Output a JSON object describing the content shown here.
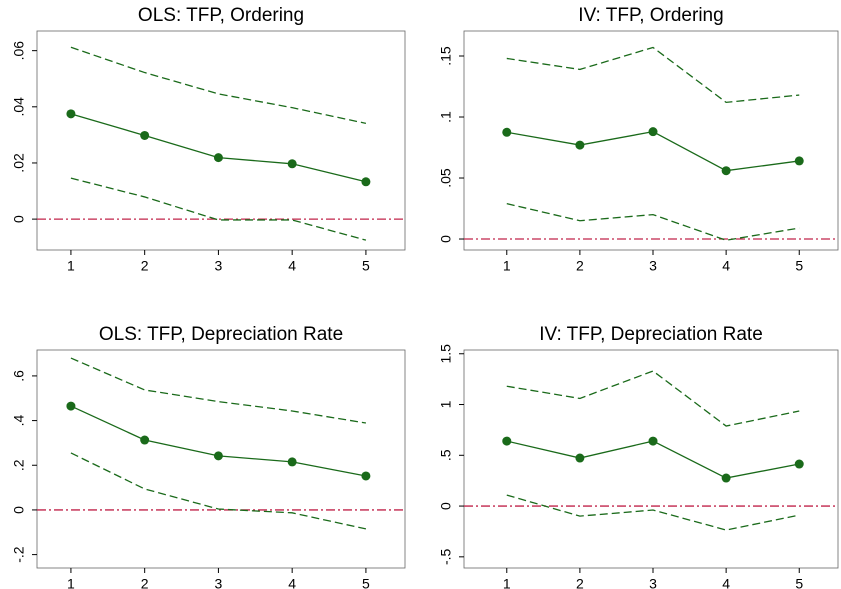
{
  "chart_data": [
    {
      "type": "line",
      "title": "OLS: TFP, Ordering",
      "x": [
        1,
        2,
        3,
        4,
        5
      ],
      "xlim": [
        0.54,
        5.53
      ],
      "xticks": [
        1,
        2,
        3,
        4,
        5
      ],
      "ylim": [
        -0.011,
        0.067
      ],
      "yticks": [
        0,
        {
          "value": 0.02,
          "label": ".02"
        },
        {
          "value": 0.04,
          "label": ".04"
        },
        {
          "value": 0.06,
          "label": ".06"
        }
      ],
      "reference_line": {
        "value": 0,
        "color": "#c0244a"
      },
      "series": [
        {
          "color": "#1a6a1a",
          "style": "solid",
          "markers": true,
          "values": [
            0.0375,
            0.0298,
            0.0219,
            0.0197,
            0.0133
          ]
        },
        {
          "color": "#1a6a1a",
          "style": "dashed",
          "markers": false,
          "values": [
            0.0612,
            0.0522,
            0.0446,
            0.0397,
            0.0341
          ]
        },
        {
          "color": "#1a6a1a",
          "style": "dashed",
          "markers": false,
          "values": [
            0.0146,
            0.0079,
            -0.0003,
            -0.0003,
            -0.0075
          ]
        }
      ]
    },
    {
      "type": "line",
      "title": "IV: TFP, Ordering",
      "x": [
        1,
        2,
        3,
        4,
        5
      ],
      "xlim": [
        0.415,
        5.53
      ],
      "xticks": [
        1,
        2,
        3,
        4,
        5
      ],
      "ylim": [
        -0.009,
        0.1705
      ],
      "yticks": [
        0,
        {
          "value": 0.05,
          "label": ".05"
        },
        {
          "value": 0.1,
          "label": ".1"
        },
        {
          "value": 0.15,
          "label": ".15"
        }
      ],
      "reference_line": {
        "value": 0,
        "color": "#c0244a"
      },
      "series": [
        {
          "color": "#1a6a1a",
          "style": "solid",
          "markers": true,
          "values": [
            0.0875,
            0.077,
            0.088,
            0.056,
            0.064
          ]
        },
        {
          "color": "#1a6a1a",
          "style": "dashed",
          "markers": false,
          "values": [
            0.148,
            0.139,
            0.157,
            0.112,
            0.118
          ]
        },
        {
          "color": "#1a6a1a",
          "style": "dashed",
          "markers": false,
          "values": [
            0.029,
            0.015,
            0.02,
            -0.001,
            0.009
          ]
        }
      ]
    },
    {
      "type": "line",
      "title": "OLS: TFP, Depreciation Rate",
      "x": [
        1,
        2,
        3,
        4,
        5
      ],
      "xlim": [
        0.54,
        5.53
      ],
      "xticks": [
        1,
        2,
        3,
        4,
        5
      ],
      "ylim": [
        -0.26,
        0.716
      ],
      "yticks": [
        {
          "value": -0.2,
          "label": "-.2"
        },
        0,
        {
          "value": 0.2,
          "label": ".2"
        },
        {
          "value": 0.4,
          "label": ".4"
        },
        {
          "value": 0.6,
          "label": ".6"
        }
      ],
      "reference_line": {
        "value": 0,
        "color": "#c0244a"
      },
      "series": [
        {
          "color": "#1a6a1a",
          "style": "solid",
          "markers": true,
          "values": [
            0.465,
            0.313,
            0.242,
            0.215,
            0.152
          ]
        },
        {
          "color": "#1a6a1a",
          "style": "dashed",
          "markers": false,
          "values": [
            0.68,
            0.537,
            0.485,
            0.443,
            0.389
          ]
        },
        {
          "color": "#1a6a1a",
          "style": "dashed",
          "markers": false,
          "values": [
            0.255,
            0.094,
            0.004,
            -0.013,
            -0.085
          ]
        }
      ]
    },
    {
      "type": "line",
      "title": "IV: TFP, Depreciation Rate",
      "x": [
        1,
        2,
        3,
        4,
        5
      ],
      "xlim": [
        0.415,
        5.53
      ],
      "xticks": [
        1,
        2,
        3,
        4,
        5
      ],
      "ylim": [
        -0.61,
        1.537
      ],
      "yticks": [
        {
          "value": -0.5,
          "label": "-.5"
        },
        0,
        {
          "value": 0.5,
          "label": ".5"
        },
        1,
        {
          "value": 1.5,
          "label": "1.5"
        }
      ],
      "reference_line": {
        "value": 0,
        "color": "#c0244a"
      },
      "series": [
        {
          "color": "#1a6a1a",
          "style": "solid",
          "markers": true,
          "values": [
            0.64,
            0.473,
            0.64,
            0.276,
            0.414
          ]
        },
        {
          "color": "#1a6a1a",
          "style": "dashed",
          "markers": false,
          "values": [
            1.18,
            1.06,
            1.33,
            0.788,
            0.936
          ]
        },
        {
          "color": "#1a6a1a",
          "style": "dashed",
          "markers": false,
          "values": [
            0.108,
            -0.099,
            -0.039,
            -0.236,
            -0.089
          ]
        }
      ]
    }
  ]
}
